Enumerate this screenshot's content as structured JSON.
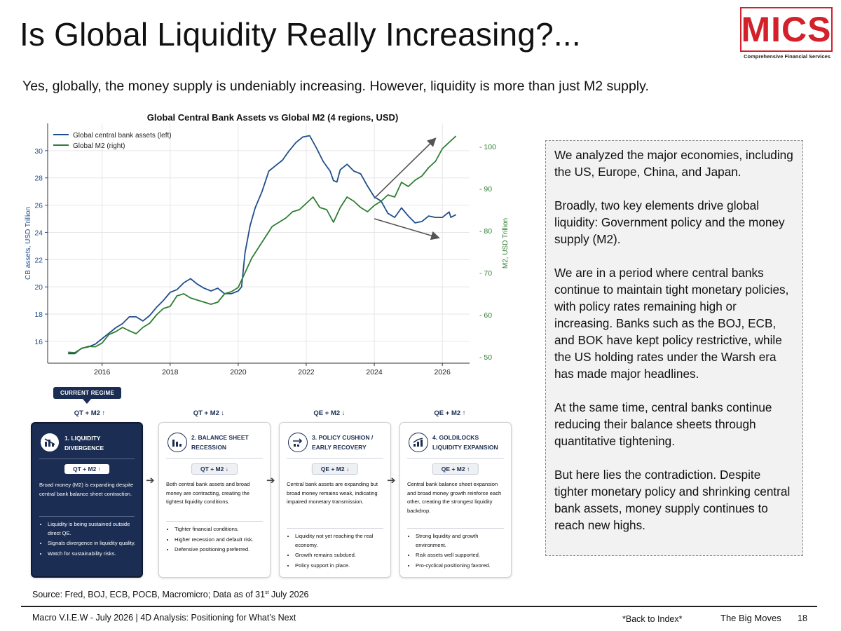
{
  "page": {
    "title": "Is Global Liquidity Really Increasing?...",
    "subtitle": "Yes, globally, the money supply is undeniably increasing. However, liquidity is more than just M2 supply."
  },
  "logo": {
    "text": "MICS",
    "tagline": "Comprehensive Financial Services",
    "color": "#d3202a"
  },
  "chart_data": {
    "type": "line",
    "title": "Global Central Bank Assets vs Global M2 (4 regions, USD)",
    "ylabel_left": "CB assets, USD Trillion",
    "ylabel_right": "M2, USD Trillion",
    "xlim": [
      2014.4,
      2026.8
    ],
    "ylim_left": [
      14.4,
      32.0
    ],
    "ylim_right": [
      48.5,
      105.5
    ],
    "x_ticks": [
      2016,
      2018,
      2020,
      2022,
      2024,
      2026
    ],
    "y_ticks_left": [
      16,
      18,
      20,
      22,
      24,
      26,
      28,
      30
    ],
    "y_ticks_right": [
      50,
      60,
      70,
      80,
      90,
      100
    ],
    "grid": true,
    "legend_position": "top-left",
    "series": [
      {
        "name": "Global central bank assets (left)",
        "axis": "left",
        "color": "#1f4e8c",
        "points": [
          [
            2015.0,
            15.1
          ],
          [
            2015.2,
            15.1
          ],
          [
            2015.4,
            15.5
          ],
          [
            2015.6,
            15.6
          ],
          [
            2015.8,
            15.8
          ],
          [
            2016.0,
            16.2
          ],
          [
            2016.2,
            16.6
          ],
          [
            2016.4,
            17.0
          ],
          [
            2016.6,
            17.3
          ],
          [
            2016.8,
            17.8
          ],
          [
            2017.0,
            17.8
          ],
          [
            2017.2,
            17.5
          ],
          [
            2017.4,
            17.9
          ],
          [
            2017.6,
            18.5
          ],
          [
            2017.8,
            19.0
          ],
          [
            2018.0,
            19.6
          ],
          [
            2018.2,
            19.8
          ],
          [
            2018.4,
            20.3
          ],
          [
            2018.6,
            20.6
          ],
          [
            2018.8,
            20.2
          ],
          [
            2019.0,
            19.9
          ],
          [
            2019.2,
            19.7
          ],
          [
            2019.4,
            19.9
          ],
          [
            2019.6,
            19.5
          ],
          [
            2019.8,
            19.5
          ],
          [
            2020.0,
            19.7
          ],
          [
            2020.1,
            20.0
          ],
          [
            2020.2,
            22.5
          ],
          [
            2020.35,
            24.5
          ],
          [
            2020.5,
            25.8
          ],
          [
            2020.7,
            27.0
          ],
          [
            2020.9,
            28.5
          ],
          [
            2021.1,
            28.9
          ],
          [
            2021.3,
            29.3
          ],
          [
            2021.5,
            30.0
          ],
          [
            2021.7,
            30.6
          ],
          [
            2021.9,
            31.0
          ],
          [
            2022.1,
            31.1
          ],
          [
            2022.3,
            30.2
          ],
          [
            2022.5,
            29.2
          ],
          [
            2022.7,
            28.5
          ],
          [
            2022.8,
            27.8
          ],
          [
            2022.9,
            27.7
          ],
          [
            2023.0,
            28.6
          ],
          [
            2023.2,
            29.0
          ],
          [
            2023.4,
            28.5
          ],
          [
            2023.6,
            28.3
          ],
          [
            2023.8,
            27.4
          ],
          [
            2024.0,
            26.6
          ],
          [
            2024.2,
            26.3
          ],
          [
            2024.4,
            25.4
          ],
          [
            2024.6,
            25.1
          ],
          [
            2024.8,
            25.8
          ],
          [
            2025.0,
            25.2
          ],
          [
            2025.2,
            24.7
          ],
          [
            2025.4,
            24.8
          ],
          [
            2025.6,
            25.2
          ],
          [
            2025.8,
            25.1
          ],
          [
            2026.0,
            25.1
          ],
          [
            2026.1,
            25.3
          ],
          [
            2026.2,
            25.5
          ],
          [
            2026.25,
            25.1
          ],
          [
            2026.4,
            25.3
          ]
        ]
      },
      {
        "name": "Global M2 (right)",
        "axis": "right",
        "color": "#2e7d32",
        "points": [
          [
            2015.0,
            51.1
          ],
          [
            2015.2,
            51.0
          ],
          [
            2015.4,
            52.0
          ],
          [
            2015.6,
            52.5
          ],
          [
            2015.8,
            52.4
          ],
          [
            2016.0,
            53.3
          ],
          [
            2016.2,
            55.3
          ],
          [
            2016.4,
            56.0
          ],
          [
            2016.6,
            57.0
          ],
          [
            2016.8,
            56.2
          ],
          [
            2017.0,
            55.5
          ],
          [
            2017.2,
            57.0
          ],
          [
            2017.4,
            58.0
          ],
          [
            2017.6,
            60.0
          ],
          [
            2017.8,
            61.5
          ],
          [
            2018.0,
            62.0
          ],
          [
            2018.2,
            64.5
          ],
          [
            2018.4,
            65.0
          ],
          [
            2018.6,
            64.0
          ],
          [
            2018.8,
            63.5
          ],
          [
            2019.0,
            63.0
          ],
          [
            2019.2,
            62.5
          ],
          [
            2019.4,
            63.0
          ],
          [
            2019.6,
            65.0
          ],
          [
            2019.8,
            65.5
          ],
          [
            2020.0,
            66.5
          ],
          [
            2020.2,
            70.0
          ],
          [
            2020.4,
            73.5
          ],
          [
            2020.6,
            76.0
          ],
          [
            2020.8,
            78.5
          ],
          [
            2021.0,
            81.0
          ],
          [
            2021.2,
            82.0
          ],
          [
            2021.4,
            83.0
          ],
          [
            2021.6,
            84.5
          ],
          [
            2021.8,
            85.0
          ],
          [
            2022.0,
            86.5
          ],
          [
            2022.2,
            88.0
          ],
          [
            2022.4,
            85.5
          ],
          [
            2022.6,
            85.0
          ],
          [
            2022.8,
            82.0
          ],
          [
            2023.0,
            85.5
          ],
          [
            2023.2,
            88.0
          ],
          [
            2023.4,
            87.0
          ],
          [
            2023.6,
            85.5
          ],
          [
            2023.8,
            84.5
          ],
          [
            2024.0,
            86.0
          ],
          [
            2024.2,
            87.0
          ],
          [
            2024.4,
            88.5
          ],
          [
            2024.6,
            88.0
          ],
          [
            2024.8,
            91.5
          ],
          [
            2025.0,
            90.5
          ],
          [
            2025.2,
            92.0
          ],
          [
            2025.4,
            93.0
          ],
          [
            2025.6,
            95.0
          ],
          [
            2025.8,
            96.5
          ],
          [
            2026.0,
            99.5
          ],
          [
            2026.2,
            101.0
          ],
          [
            2026.4,
            102.5
          ]
        ]
      }
    ],
    "annotation_arrows": [
      {
        "from": [
          2024.0,
          26.5
        ],
        "to": [
          2025.8,
          30.9
        ],
        "axis": "left"
      },
      {
        "from": [
          2024.0,
          25.0
        ],
        "to": [
          2025.9,
          23.6
        ],
        "axis": "left"
      }
    ]
  },
  "regime": {
    "current_label": "CURRENT REGIME",
    "columns": [
      {
        "head": "QT + M2 ↑",
        "number_title": "1. LIQUIDITY DIVERGENCE",
        "pill": "QT + M2 ↑",
        "style": "dark",
        "desc": "Broad money (M2) is expanding despite central bank balance sheet contraction.",
        "bullets": [
          "Liquidity is being sustained outside direct QE.",
          "Signals divergence in liquidity quality.",
          "Watch for sustainability risks."
        ]
      },
      {
        "head": "QT + M2 ↓",
        "number_title": "2. BALANCE SHEET RECESSION",
        "pill": "QT + M2 ↓",
        "style": "light",
        "desc": "Both central bank assets and broad money are contracting, creating the tightest liquidity conditions.",
        "bullets": [
          "Tighter financial conditions.",
          "Higher recession and default risk.",
          "Defensive positioning preferred."
        ]
      },
      {
        "head": "QE + M2 ↓",
        "number_title": "3. POLICY CUSHION / EARLY RECOVERY",
        "pill": "QE + M2 ↓",
        "style": "light",
        "desc": "Central bank assets are expanding but broad money remains weak, indicating impaired monetary transmission.",
        "bullets": [
          "Liquidity not yet reaching the real economy.",
          "Growth remains subdued.",
          "Policy support in place."
        ]
      },
      {
        "head": "QE + M2 ↑",
        "number_title": "4. GOLDILOCKS LIQUIDITY EXPANSION",
        "pill": "QE + M2 ↑",
        "style": "light",
        "desc": "Central bank balance sheet expansion and broad money growth reinforce each other, creating the strongest liquidity backdrop.",
        "bullets": [
          "Strong liquidity and growth environment.",
          "Risk assets well supported.",
          "Pro-cyclical positioning favored."
        ]
      }
    ]
  },
  "commentary": {
    "p1": "We analyzed the major economies, including the US, Europe, China, and Japan.",
    "p2": "Broadly, two key elements drive global liquidity: Government policy and the money supply (M2).",
    "p3": "We are in a period where central banks continue to maintain tight monetary policies, with policy rates remaining high or increasing. Banks such as the BOJ, ECB, and BOK have kept policy restrictive, while the US holding rates under the Warsh era has made major headlines.",
    "p4": "At the same time, central banks continue reducing their balance sheets through quantitative tightening.",
    "p5": "But here lies the contradiction. Despite tighter monetary policy and shrinking central bank assets, money supply continues to reach new highs."
  },
  "source": {
    "prefix": "Source: Fred, BOJ, ECB, POCB, Macromicro; Data as of 31",
    "sup": "st",
    "suffix": " July 2026"
  },
  "footer": {
    "left": "Macro V.I.E.W - July 2026 | 4D Analysis: Positioning for What’s Next",
    "back": "*Back to Index*",
    "right": "The Big Moves",
    "page": "18"
  }
}
